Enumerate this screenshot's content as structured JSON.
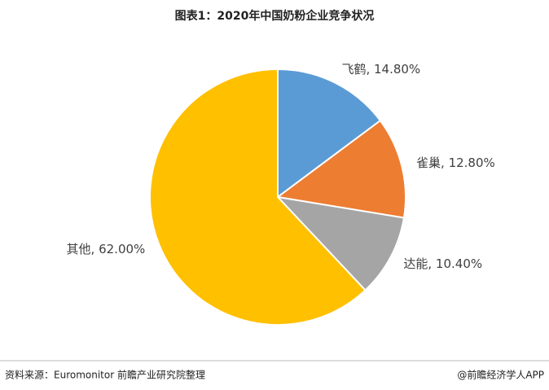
{
  "chart_data": {
    "type": "pie",
    "title": "图表1：2020年中国奶粉企业竞争状况",
    "values": [
      14.8,
      12.8,
      10.4,
      62.0
    ],
    "value_labels": [
      "飞鹤, 14.80%",
      "雀巢, 12.80%",
      "达能, 10.40%",
      "其他, 62.00%"
    ],
    "colors": [
      "#5B9BD5",
      "#ED7D31",
      "#A5A5A5",
      "#FFC000"
    ]
  },
  "footer": {
    "source": "资料来源：Euromonitor 前瞻产业研究院整理",
    "brand": "@前瞻经济学人APP"
  }
}
